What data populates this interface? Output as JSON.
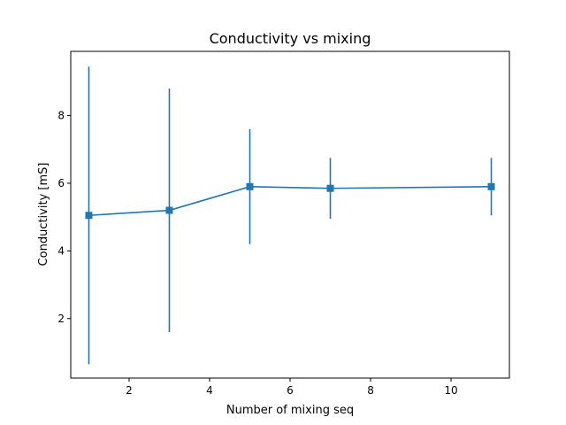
{
  "chart_data": {
    "type": "line",
    "title": "Conductivity vs mixing",
    "xlabel": "Number of mixing seq",
    "ylabel": "Conductivity [mS]",
    "xlim": [
      0.55,
      11.45
    ],
    "ylim": [
      0.24,
      9.9
    ],
    "xticks": [
      2,
      4,
      6,
      8,
      10
    ],
    "yticks": [
      2,
      4,
      6,
      8
    ],
    "grid": false,
    "series": [
      {
        "color": "#1f77b4",
        "marker": "square",
        "x": [
          1,
          3,
          5,
          7,
          11
        ],
        "y": [
          5.05,
          5.2,
          5.9,
          5.85,
          5.9
        ],
        "yerr_low": [
          0.65,
          1.6,
          4.2,
          4.95,
          5.05
        ],
        "yerr_high": [
          9.45,
          8.8,
          7.6,
          6.75,
          6.75
        ]
      }
    ]
  }
}
